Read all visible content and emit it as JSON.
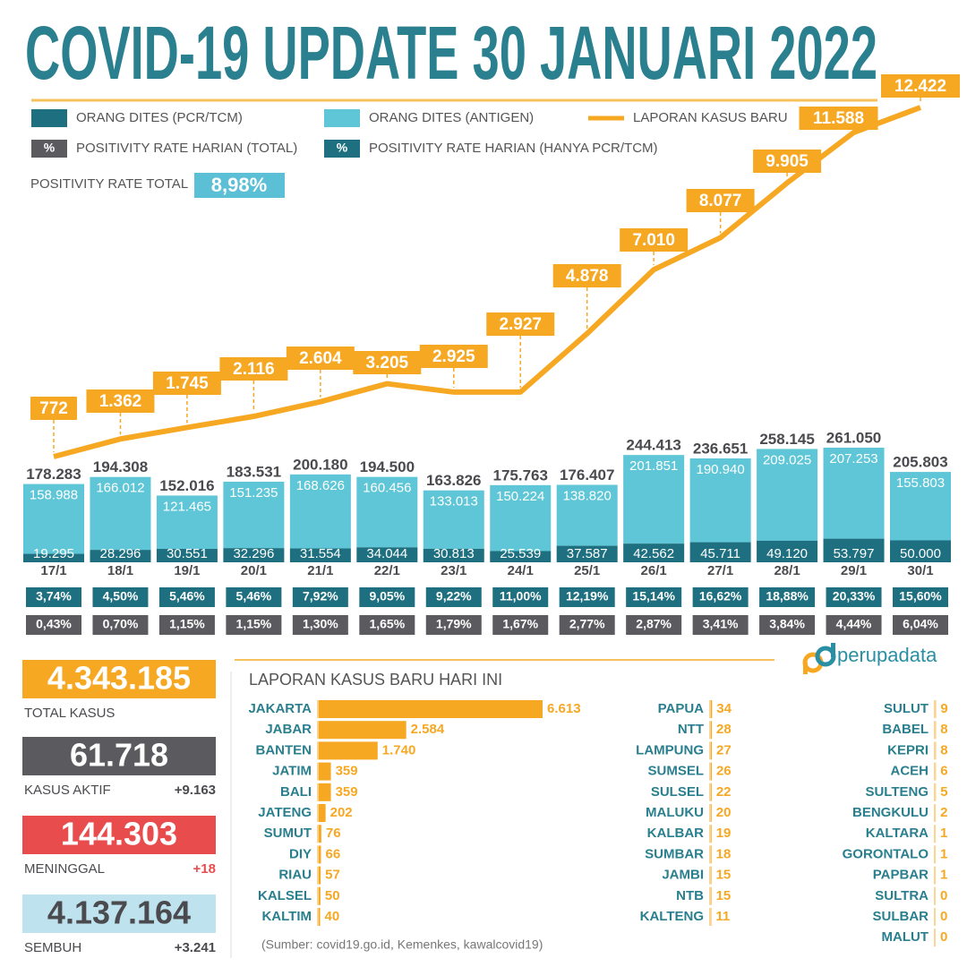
{
  "title": "COVID-19 UPDATE 30 JANUARI 2022",
  "chart_data": [
    {
      "type": "bar-line",
      "categories": [
        "17/1",
        "18/1",
        "19/1",
        "20/1",
        "21/1",
        "22/1",
        "23/1",
        "24/1",
        "25/1",
        "26/1",
        "27/1",
        "28/1",
        "29/1",
        "30/1"
      ],
      "series": [
        {
          "name": "ORANG DITES (PCR/TCM)",
          "color": "#1e6f7f",
          "values": [
            19295,
            28296,
            30551,
            32296,
            31554,
            34044,
            30813,
            25539,
            37587,
            42562,
            45711,
            49120,
            53797,
            50000
          ],
          "value_labels": [
            "19.295",
            "28.296",
            "30.551",
            "32.296",
            "31.554",
            "34.044",
            "30.813",
            "25.539",
            "37.587",
            "42.562",
            "45.711",
            "49.120",
            "53.797",
            "50.000"
          ]
        },
        {
          "name": "ORANG DITES (ANTIGEN)",
          "color": "#5ec6d6",
          "values": [
            158988,
            166012,
            121465,
            151235,
            168626,
            160456,
            133013,
            150224,
            138820,
            201851,
            190940,
            209025,
            207253,
            155803
          ],
          "value_labels": [
            "158.988",
            "166.012",
            "121.465",
            "151.235",
            "168.626",
            "160.456",
            "133.013",
            "150.224",
            "138.820",
            "201.851",
            "190.940",
            "209.025",
            "207.253",
            "155.803"
          ]
        },
        {
          "name": "LAPORAN KASUS BARU",
          "color": "#f7a823",
          "axis": "y2",
          "values": [
            772,
            1362,
            1745,
            2116,
            2604,
            3205,
            2925,
            2927,
            4878,
            7010,
            8077,
            9905,
            11588,
            12422
          ],
          "value_labels": [
            "772",
            "1.362",
            "1.745",
            "2.116",
            "2.604",
            "3.205",
            "2.925",
            "2.927",
            "4.878",
            "7.010",
            "8.077",
            "9.905",
            "11.588",
            "12.422"
          ]
        }
      ],
      "totals": {
        "values": [
          178283,
          194308,
          152016,
          183531,
          200180,
          194500,
          163826,
          175763,
          176407,
          244413,
          236651,
          258145,
          261050,
          205803
        ],
        "value_labels": [
          "178.283",
          "194.308",
          "152.016",
          "183.531",
          "200.180",
          "194.500",
          "163.826",
          "175.763",
          "176.407",
          "244.413",
          "236.651",
          "258.145",
          "261.050",
          "205.803"
        ]
      },
      "rate_symbol": "%",
      "rates": [
        {
          "name": "POSITIVITY RATE HARIAN (TOTAL)",
          "color": "#5b5b5f",
          "values": [
            0.43,
            0.7,
            1.15,
            1.15,
            1.3,
            1.65,
            1.79,
            1.67,
            2.77,
            2.87,
            3.41,
            3.84,
            4.44,
            6.04
          ],
          "value_labels": [
            "0,43%",
            "0,70%",
            "1,15%",
            "1,15%",
            "1,30%",
            "1,65%",
            "1,79%",
            "1,67%",
            "2,77%",
            "2,87%",
            "3,41%",
            "3,84%",
            "4,44%",
            "6,04%"
          ]
        },
        {
          "name": "POSITIVITY RATE HARIAN (HANYA PCR/TCM)",
          "color": "#1e6f7f",
          "values": [
            3.74,
            4.5,
            5.46,
            5.46,
            7.92,
            9.05,
            9.22,
            11.0,
            12.19,
            15.14,
            16.62,
            18.88,
            20.33,
            15.6
          ],
          "value_labels": [
            "3,74%",
            "4,50%",
            "5,46%",
            "5,46%",
            "7,92%",
            "9,05%",
            "9,22%",
            "11,00%",
            "12,19%",
            "15,14%",
            "16,62%",
            "18,88%",
            "20,33%",
            "15,60%"
          ]
        }
      ],
      "total_rate": {
        "label": "POSITIVITY RATE TOTAL",
        "value": 8.98,
        "value_label": "8,98%",
        "color": "#5bbfd6"
      }
    },
    {
      "type": "hbar",
      "title": "LAPORAN KASUS BARU HARI INI",
      "color": "#f7a823",
      "categories": [
        "JAKARTA",
        "JABAR",
        "BANTEN",
        "JATIM",
        "BALI",
        "JATENG",
        "SUMUT",
        "DIY",
        "RIAU",
        "KALSEL",
        "KALTIM",
        "PAPUA",
        "NTT",
        "LAMPUNG",
        "SUMSEL",
        "SULSEL",
        "MALUKU",
        "KALBAR",
        "SUMBAR",
        "JAMBI",
        "NTB",
        "KALTENG",
        "SULUT",
        "BABEL",
        "KEPRI",
        "ACEH",
        "SULTENG",
        "BENGKULU",
        "KALTARA",
        "GORONTALO",
        "PAPBAR",
        "SULTRA",
        "SULBAR",
        "MALUT"
      ],
      "values": [
        6613,
        2584,
        1740,
        359,
        359,
        202,
        76,
        66,
        57,
        50,
        40,
        34,
        28,
        27,
        26,
        22,
        20,
        19,
        18,
        15,
        15,
        11,
        9,
        8,
        8,
        6,
        5,
        2,
        1,
        1,
        1,
        0,
        0,
        0
      ],
      "value_labels": [
        "6.613",
        "2.584",
        "1.740",
        "359",
        "359",
        "202",
        "76",
        "66",
        "57",
        "50",
        "40",
        "34",
        "28",
        "27",
        "26",
        "22",
        "20",
        "19",
        "18",
        "15",
        "15",
        "11",
        "9",
        "8",
        "8",
        "6",
        "5",
        "2",
        "1",
        "1",
        "1",
        "0",
        "0",
        "0"
      ]
    }
  ],
  "stats": [
    {
      "value": "4.343.185",
      "label": "TOTAL KASUS",
      "color": "#f7a823",
      "text_color": "#ffffff"
    },
    {
      "value": "61.718",
      "label": "KASUS AKTIF",
      "change": "+9.163",
      "color": "#5b5b5f",
      "text_color": "#ffffff",
      "change_color": "#4a4a4f"
    },
    {
      "value": "144.303",
      "label": "MENINGGAL",
      "change": "+18",
      "color": "#e84c4c",
      "text_color": "#ffffff",
      "change_color": "#e84c4c"
    },
    {
      "value": "4.137.164",
      "label": "SEMBUH",
      "change": "+3.241",
      "color": "#bfe3ee",
      "text_color": "#4a4a4f",
      "change_color": "#4a4a4f"
    }
  ],
  "source": "(Sumber: covid19.go.id, Kemenkes, kawalcovid19)",
  "logo": "perupadata"
}
